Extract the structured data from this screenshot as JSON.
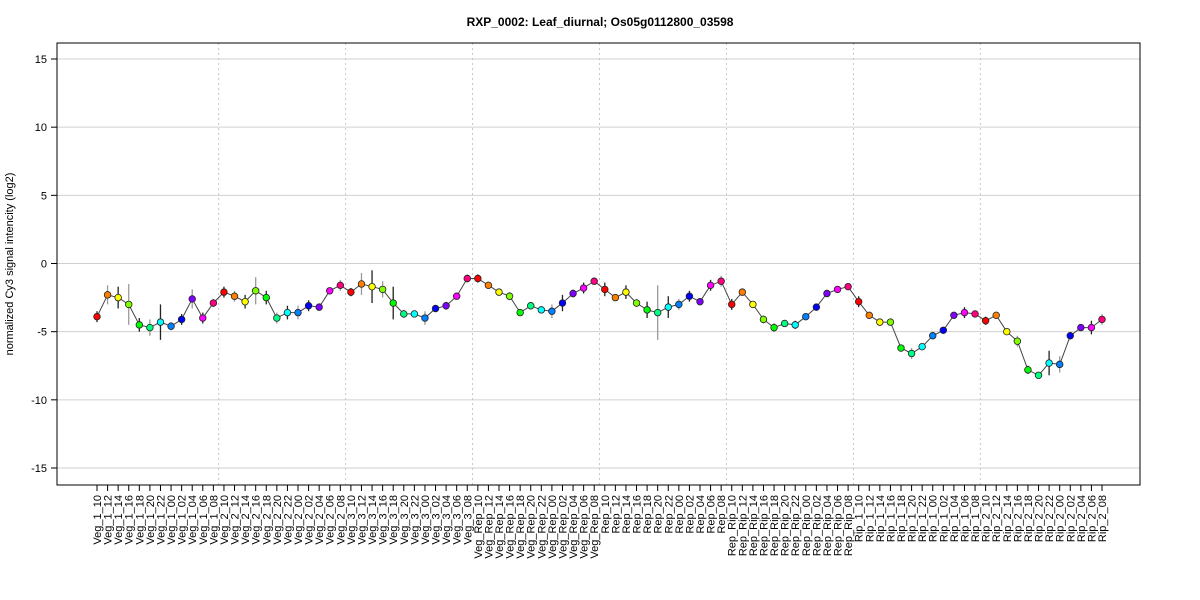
{
  "chart_data": {
    "type": "line",
    "title": "RXP_0002: Leaf_diurnal; Os05g0112800_03598",
    "xlabel": "",
    "ylabel": "normalized Cy3 signal intencity (log2)",
    "ylim": [
      -16,
      16
    ],
    "yticks": [
      15,
      10,
      5,
      0,
      -5,
      -10,
      -15
    ],
    "grid": true,
    "groups": [
      "Veg_1",
      "Veg_2",
      "Veg_3",
      "Veg_Rep",
      "Rep",
      "Rep_Rip",
      "Rip_1",
      "Rip_2"
    ],
    "times": [
      "10",
      "12",
      "14",
      "16",
      "18",
      "20",
      "22",
      "00",
      "02",
      "04",
      "06",
      "08"
    ],
    "time_colors": [
      "#ff0000",
      "#ff8000",
      "#ffff00",
      "#80ff00",
      "#00ff00",
      "#00ff80",
      "#00ffff",
      "#0080ff",
      "#0000ff",
      "#8000ff",
      "#ff00ff",
      "#ff0080"
    ],
    "values": [
      -3.9,
      -2.3,
      -2.5,
      -3.0,
      -4.5,
      -4.7,
      -4.3,
      -4.6,
      -4.1,
      -2.6,
      -4.0,
      -2.9,
      -2.1,
      -2.4,
      -2.8,
      -2.0,
      -2.5,
      -4.0,
      -3.6,
      -3.6,
      -3.1,
      -3.2,
      -2.0,
      -1.6,
      -2.1,
      -1.5,
      -1.7,
      -1.9,
      -2.9,
      -3.7,
      -3.7,
      -4.0,
      -3.3,
      -3.1,
      -2.4,
      -1.1,
      -1.1,
      -1.6,
      -2.1,
      -2.4,
      -3.6,
      -3.1,
      -3.4,
      -3.5,
      -2.9,
      -2.2,
      -1.8,
      -1.3,
      -1.9,
      -2.5,
      -2.1,
      -2.9,
      -3.4,
      -3.6,
      -3.2,
      -3.0,
      -2.4,
      -2.8,
      -1.6,
      -1.3,
      -3.0,
      -2.1,
      -3.0,
      -4.1,
      -4.7,
      -4.4,
      -4.5,
      -3.9,
      -3.2,
      -2.2,
      -1.9,
      -1.7,
      -2.8,
      -3.8,
      -4.3,
      -4.3,
      -6.2,
      -6.6,
      -6.1,
      -5.3,
      -4.9,
      -3.8,
      -3.6,
      -3.7,
      -4.2,
      -3.8,
      -5.0,
      -5.7,
      -7.8,
      -8.2,
      -7.3,
      -7.4,
      -5.3,
      -4.7,
      -4.7,
      -4.1
    ],
    "errors": [
      0.4,
      0.7,
      0.8,
      1.5,
      0.5,
      0.6,
      1.3,
      0.3,
      0.4,
      0.7,
      0.4,
      0.3,
      0.4,
      0.4,
      0.5,
      1.0,
      0.5,
      0.4,
      0.5,
      0.5,
      0.4,
      0.2,
      0.2,
      0.4,
      0.3,
      0.8,
      1.2,
      0.6,
      1.2,
      0.3,
      0.2,
      0.5,
      0.2,
      0.3,
      0.2,
      0.3,
      0.3,
      0.2,
      0.2,
      0.3,
      0.2,
      0.2,
      0.2,
      0.5,
      0.6,
      0.3,
      0.4,
      0.2,
      0.5,
      0.2,
      0.5,
      0.3,
      0.6,
      2.0,
      0.8,
      0.4,
      0.4,
      0.2,
      0.4,
      0.4,
      0.4,
      0.2,
      0.2,
      0.3,
      0.3,
      0.2,
      0.3,
      0.2,
      0.2,
      0.2,
      0.1,
      0.1,
      0.4,
      0.2,
      0.1,
      0.1,
      0.2,
      0.4,
      0.2,
      0.2,
      0.2,
      0.2,
      0.4,
      0.2,
      0.3,
      0.2,
      0.2,
      0.4,
      0.3,
      0.2,
      0.9,
      0.6,
      0.1,
      0.2,
      0.5,
      0.4
    ]
  }
}
